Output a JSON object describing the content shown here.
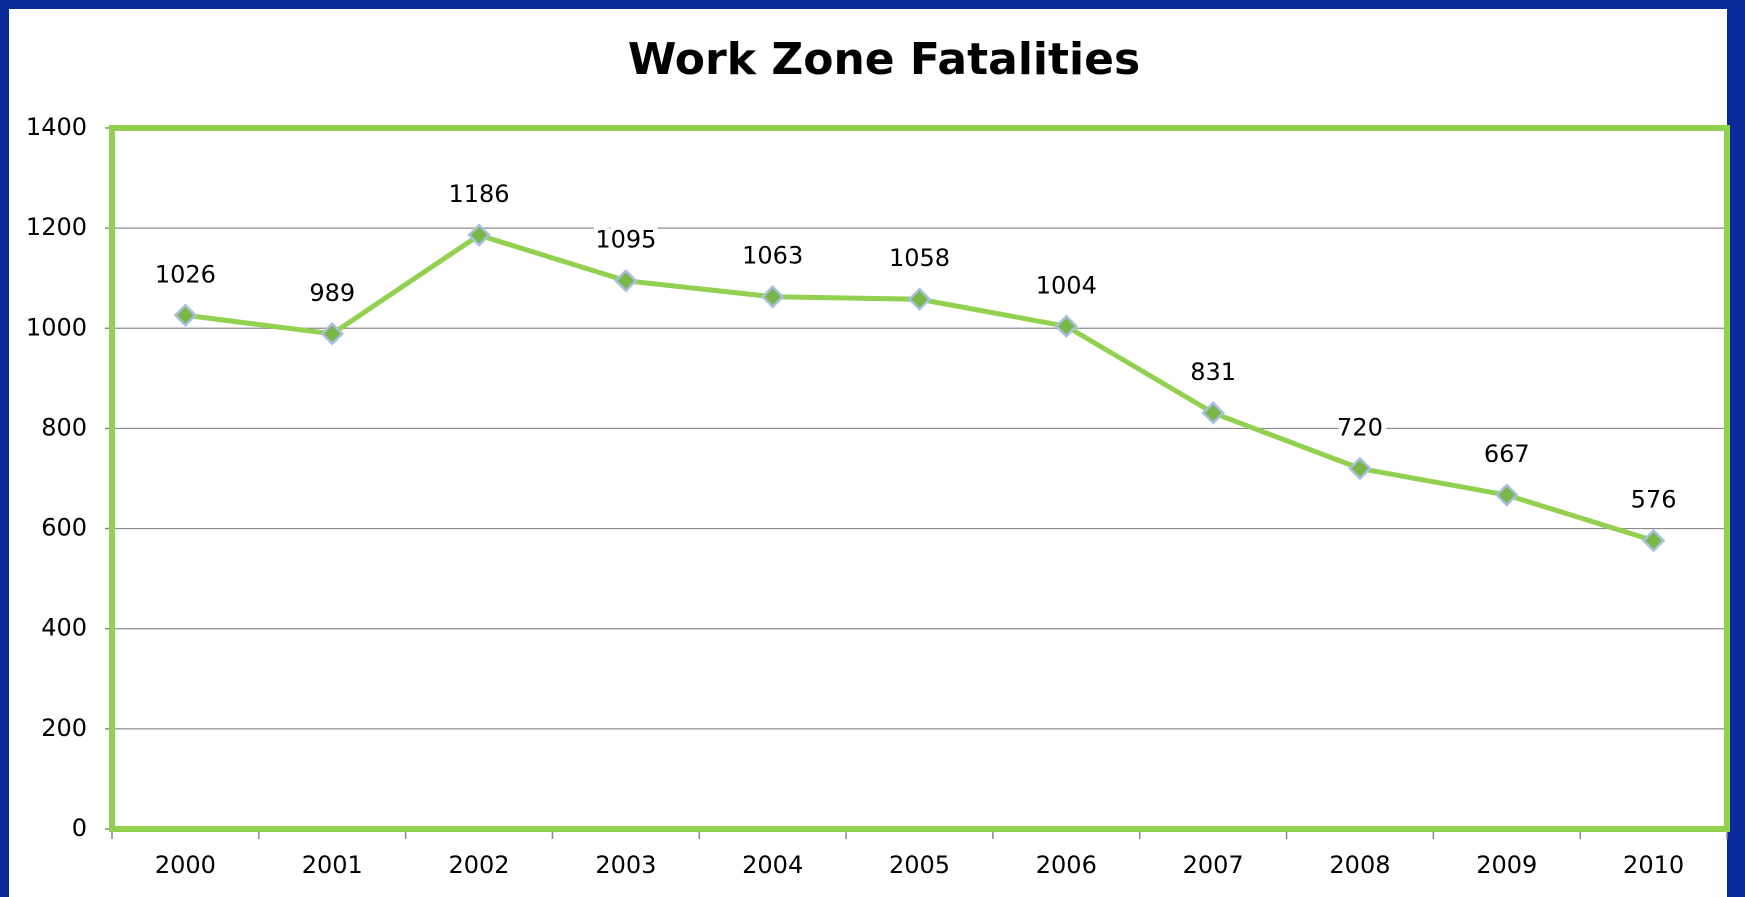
{
  "chart_data": {
    "type": "line",
    "title": "Work Zone Fatalities",
    "categories": [
      "2000",
      "2001",
      "2002",
      "2003",
      "2004",
      "2005",
      "2006",
      "2007",
      "2008",
      "2009",
      "2010"
    ],
    "values": [
      1026,
      989,
      1186,
      1095,
      1063,
      1058,
      1004,
      831,
      720,
      667,
      576
    ],
    "color": "#92d050",
    "marker_fill": "#7ab648",
    "marker_edge": "#a9bfe0",
    "ylim": [
      0,
      1400
    ],
    "yticks": [
      0,
      200,
      400,
      600,
      800,
      1000,
      1200,
      1400
    ],
    "grid": true
  }
}
